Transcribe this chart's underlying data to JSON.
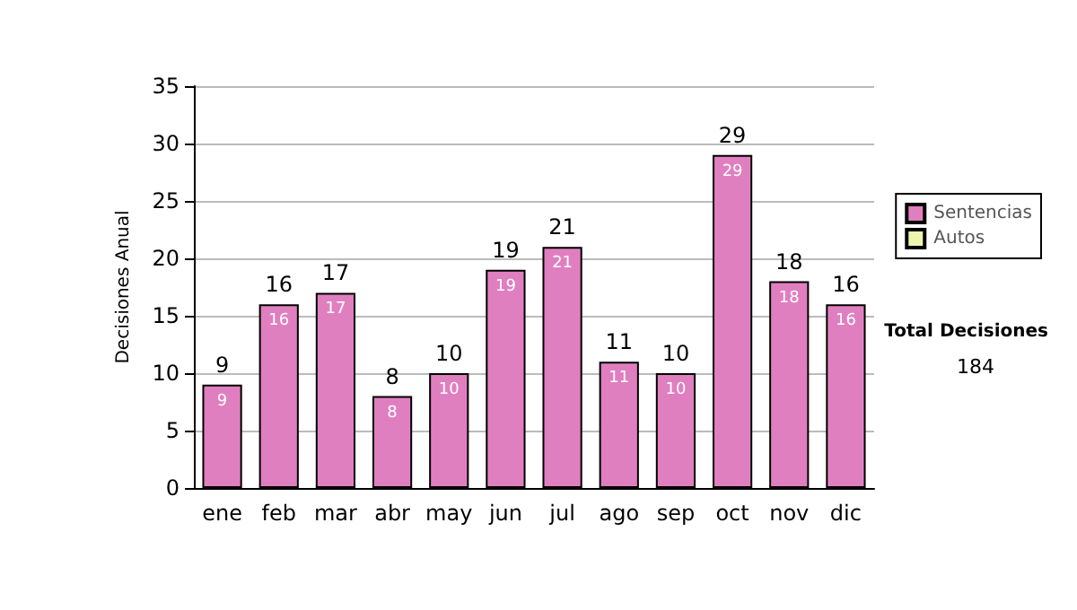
{
  "chart_data": {
    "type": "bar",
    "ylabel": "Decisiones Anual",
    "categories": [
      "ene",
      "feb",
      "mar",
      "abr",
      "may",
      "jun",
      "jul",
      "ago",
      "sep",
      "oct",
      "nov",
      "dic"
    ],
    "series": [
      {
        "name": "Sentencias",
        "color": "#e07fc0",
        "values": [
          9,
          16,
          17,
          8,
          10,
          19,
          21,
          11,
          10,
          29,
          18,
          16
        ],
        "value_labels": [
          "9",
          "16",
          "17",
          "8",
          "10",
          "19",
          "21",
          "11",
          "10",
          "29",
          "18",
          "16"
        ]
      },
      {
        "name": "Autos",
        "color": "#eef5b0",
        "values": [
          0,
          0,
          0,
          0,
          0,
          0,
          0,
          0,
          0,
          0,
          0,
          0
        ]
      }
    ],
    "stacked": true,
    "totals": [
      "9",
      "16",
      "17",
      "8",
      "10",
      "19",
      "21",
      "11",
      "10",
      "29",
      "18",
      "16"
    ],
    "ylim": [
      0,
      35
    ],
    "yticks": [
      0,
      5,
      10,
      15,
      20,
      25,
      30,
      35
    ],
    "grid": "y",
    "legend": "right",
    "annotations": [
      "Total Decisiones",
      "184"
    ]
  }
}
